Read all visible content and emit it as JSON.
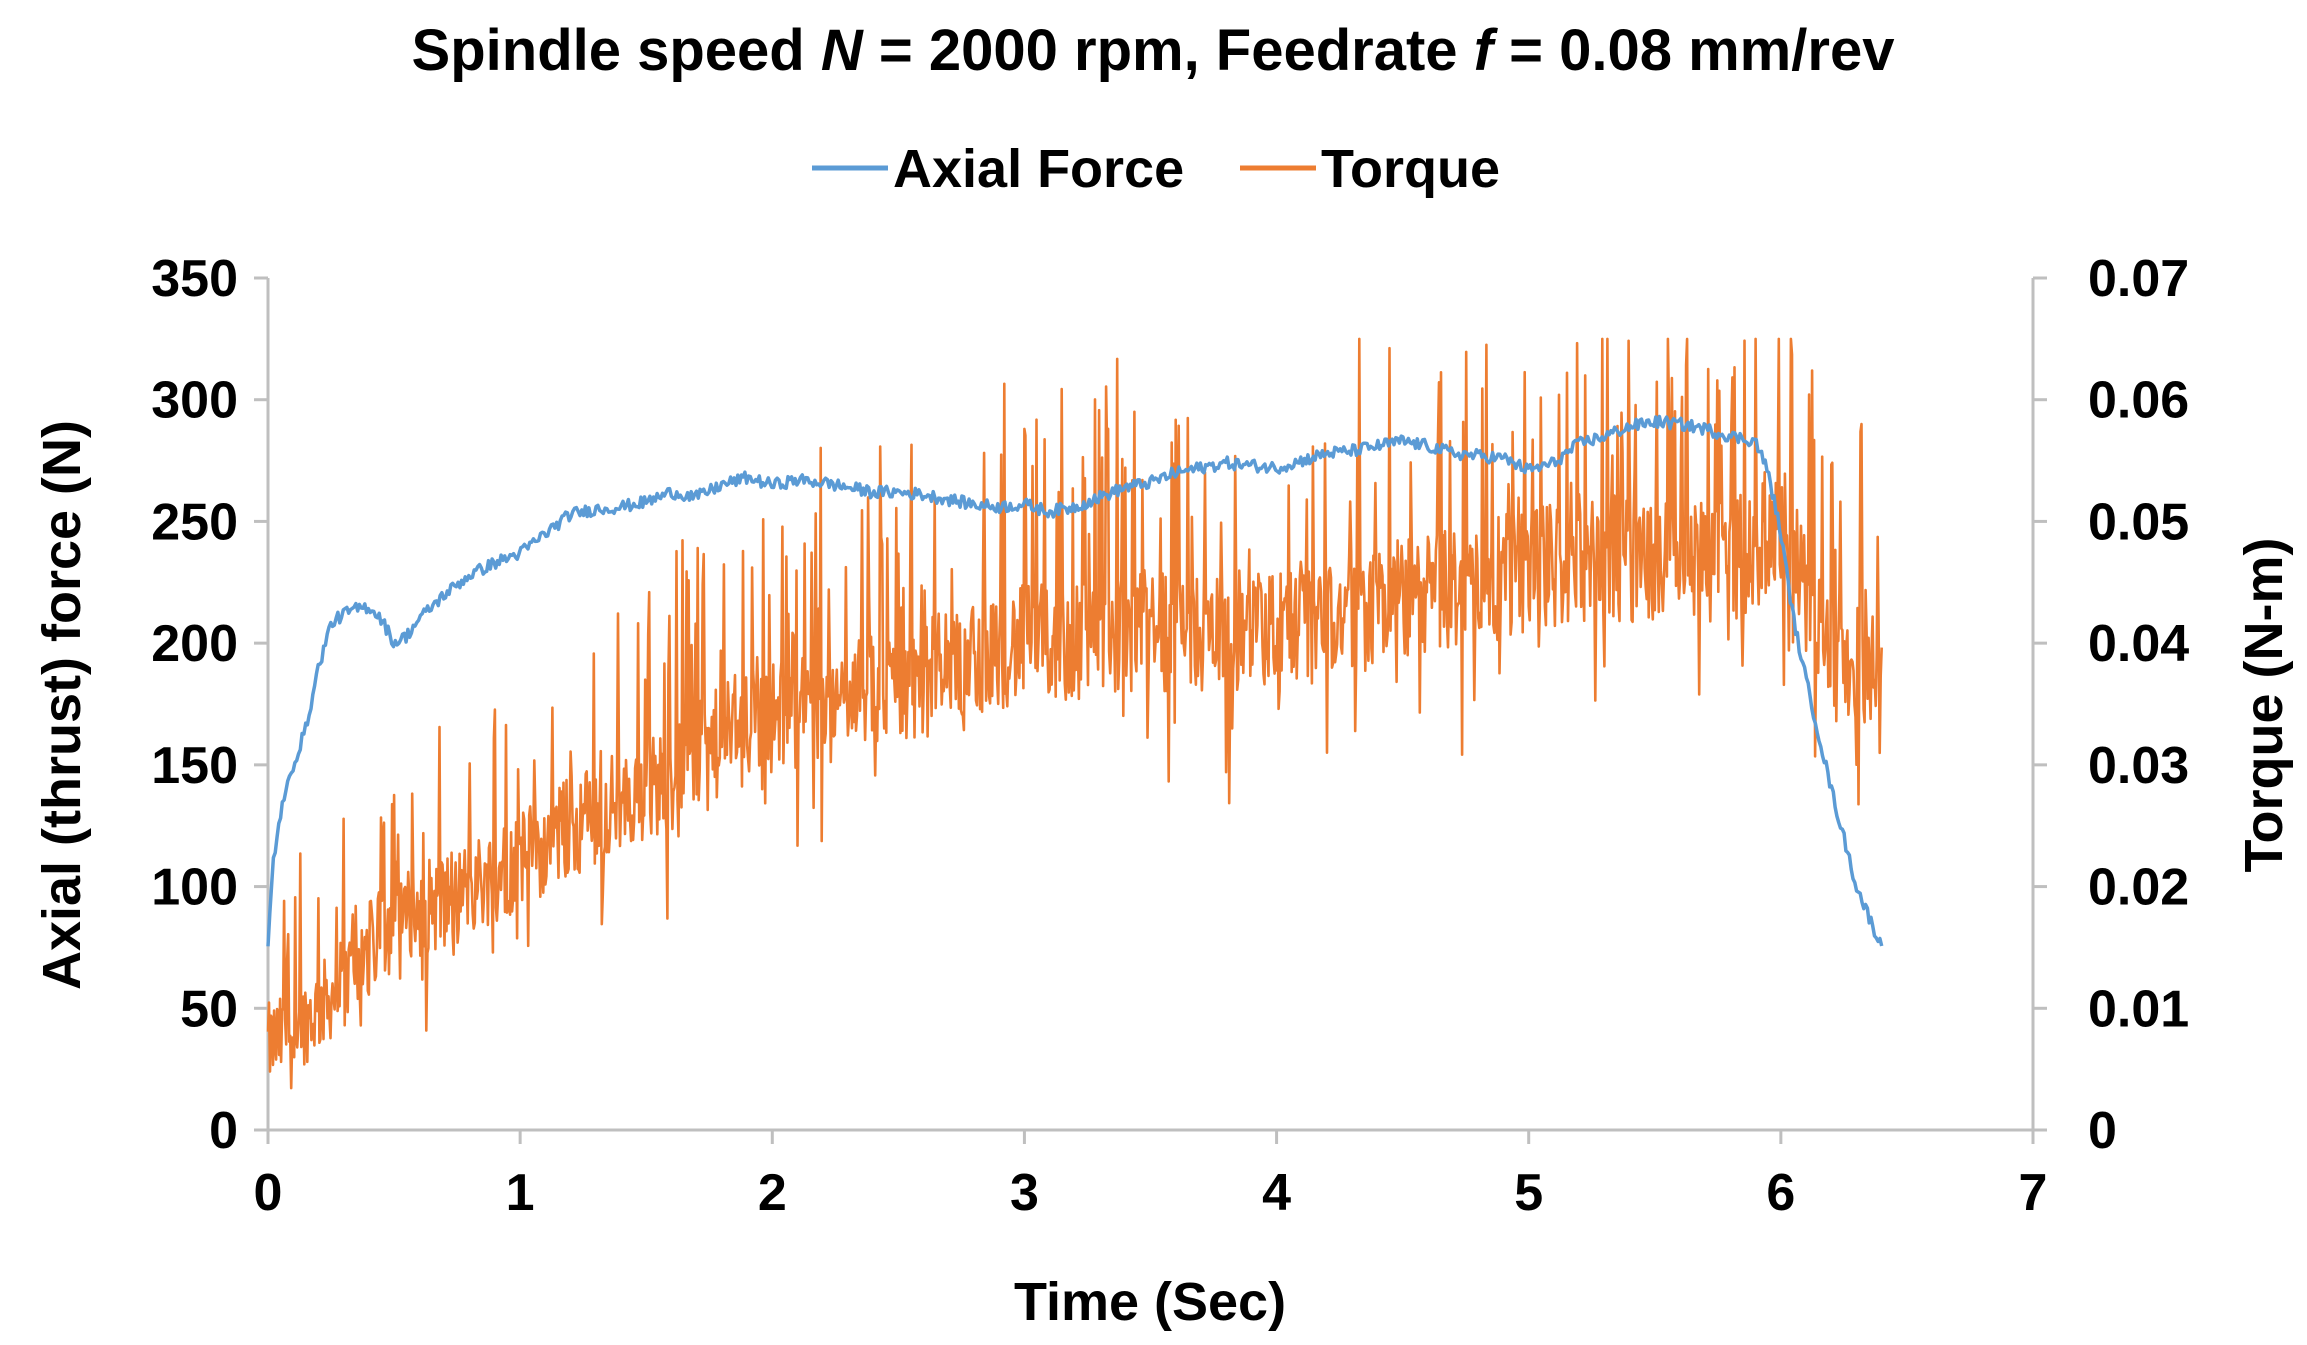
{
  "chart_data": {
    "type": "line",
    "title_parts": {
      "before_n": "Spindle speed ",
      "n": "N",
      "n_value": " = 2000 rpm, Feedrate ",
      "f": "f",
      "f_value": " = 0.08 mm/rev"
    },
    "title": "Spindle speed N = 2000 rpm, Feedrate f = 0.08 mm/rev",
    "xlabel": "Time (Sec)",
    "ylabel_left": "Axial (thrust) force (N)",
    "ylabel_right": "Torque (N-m)",
    "xlim": [
      0,
      7
    ],
    "ylim_left": [
      0,
      350
    ],
    "ylim_right": [
      0,
      0.07
    ],
    "x_ticks": [
      "0",
      "1",
      "2",
      "3",
      "4",
      "5",
      "6",
      "7"
    ],
    "y_left_ticks": [
      "0",
      "50",
      "100",
      "150",
      "200",
      "250",
      "300",
      "350"
    ],
    "y_right_ticks": [
      "0",
      "0.01",
      "0.02",
      "0.03",
      "0.04",
      "0.05",
      "0.06",
      "0.07"
    ],
    "legend_position": "top-center",
    "grid": false,
    "series": [
      {
        "name": "Axial Force",
        "axis": "left",
        "color": "#5B9BD5",
        "x": [
          0,
          0.02,
          0.05,
          0.1,
          0.15,
          0.2,
          0.25,
          0.3,
          0.35,
          0.4,
          0.45,
          0.5,
          0.55,
          0.6,
          0.7,
          0.8,
          0.9,
          1.0,
          1.1,
          1.2,
          1.3,
          1.4,
          1.5,
          1.6,
          1.7,
          1.8,
          1.9,
          2.0,
          2.1,
          2.2,
          2.3,
          2.4,
          2.5,
          2.6,
          2.7,
          2.8,
          2.9,
          3.0,
          3.1,
          3.2,
          3.3,
          3.4,
          3.5,
          3.6,
          3.7,
          3.8,
          3.9,
          4.0,
          4.1,
          4.2,
          4.3,
          4.4,
          4.5,
          4.6,
          4.7,
          4.8,
          4.9,
          5.0,
          5.1,
          5.2,
          5.3,
          5.4,
          5.5,
          5.6,
          5.7,
          5.8,
          5.9,
          5.95,
          6.0,
          6.05,
          6.1,
          6.2,
          6.3,
          6.4
        ],
        "values": [
          75,
          110,
          130,
          150,
          165,
          190,
          208,
          212,
          214,
          215,
          210,
          200,
          203,
          210,
          220,
          228,
          233,
          237,
          245,
          253,
          255,
          256,
          258,
          262,
          260,
          265,
          268,
          265,
          267,
          266,
          264,
          262,
          262,
          261,
          259,
          257,
          256,
          257,
          254,
          256,
          260,
          264,
          266,
          270,
          272,
          274,
          273,
          272,
          275,
          278,
          279,
          281,
          283,
          281,
          278,
          277,
          276,
          271,
          274,
          282,
          285,
          289,
          291,
          290,
          288,
          285,
          283,
          270,
          245,
          210,
          185,
          140,
          100,
          75
        ]
      },
      {
        "name": "Torque",
        "axis": "right",
        "color": "#ED7D31",
        "x": [
          0,
          0.1,
          0.2,
          0.3,
          0.4,
          0.5,
          0.6,
          0.7,
          0.8,
          0.9,
          1.0,
          1.2,
          1.4,
          1.6,
          1.8,
          2.0,
          2.2,
          2.4,
          2.6,
          2.8,
          3.0,
          3.2,
          3.4,
          3.6,
          3.8,
          4.0,
          4.2,
          4.4,
          4.6,
          4.8,
          5.0,
          5.2,
          5.4,
          5.6,
          5.8,
          5.9,
          6.0,
          6.1,
          6.2,
          6.3,
          6.4
        ],
        "values": [
          0.007,
          0.008,
          0.01,
          0.012,
          0.015,
          0.017,
          0.018,
          0.019,
          0.02,
          0.021,
          0.022,
          0.025,
          0.027,
          0.029,
          0.032,
          0.034,
          0.035,
          0.036,
          0.037,
          0.039,
          0.04,
          0.04,
          0.041,
          0.041,
          0.041,
          0.041,
          0.042,
          0.043,
          0.044,
          0.045,
          0.046,
          0.047,
          0.047,
          0.047,
          0.047,
          0.048,
          0.05,
          0.044,
          0.04,
          0.038,
          0.039
        ]
      }
    ]
  }
}
